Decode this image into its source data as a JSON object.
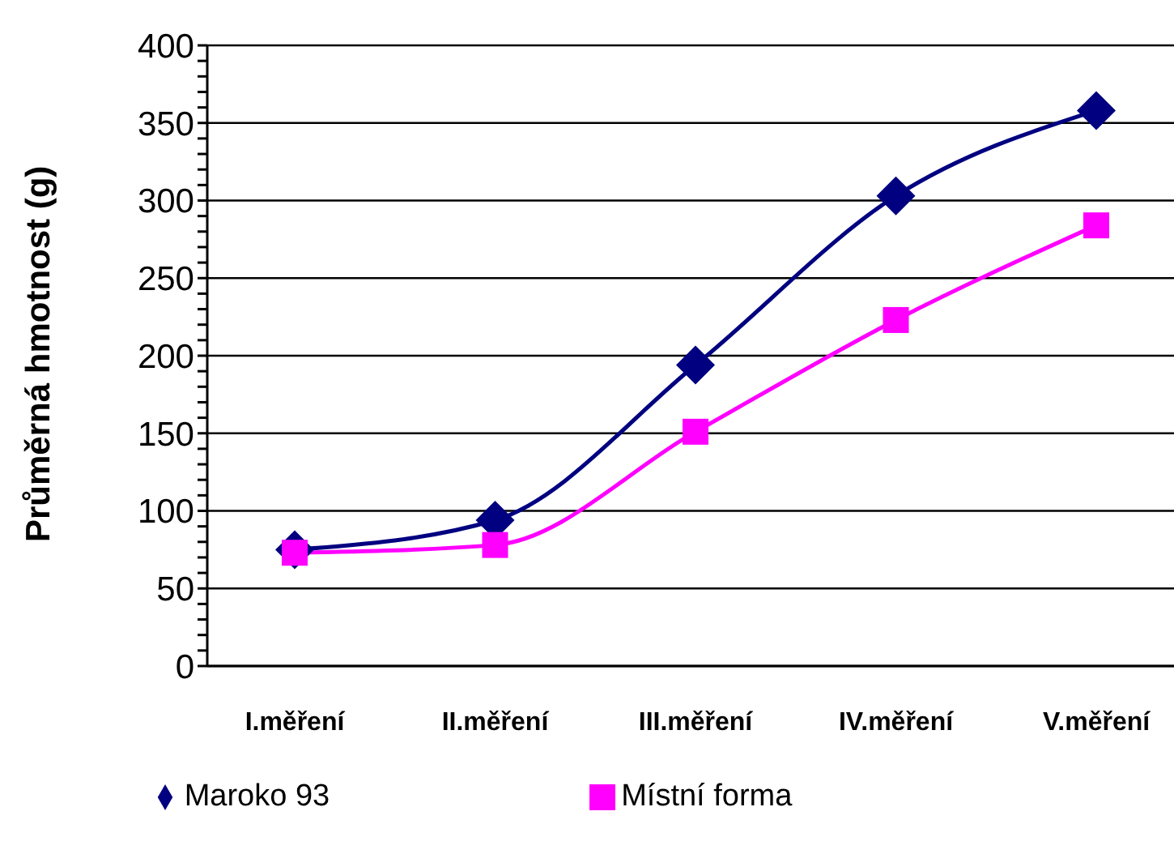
{
  "chart_data": {
    "type": "line",
    "ylabel": "Průměrná hmotnost (g)",
    "categories": [
      "I.měření",
      "II.měření",
      "III.měření",
      "IV.měření",
      "V.měření"
    ],
    "series": [
      {
        "name": "Maroko 93",
        "color": "#000080",
        "marker": "diamond",
        "values": [
          75,
          94,
          194,
          303,
          358
        ]
      },
      {
        "name": "Místní forma",
        "color": "#ff00ff",
        "marker": "square",
        "values": [
          73,
          78,
          151,
          223,
          284
        ]
      }
    ],
    "ylim": [
      0,
      400
    ],
    "yticks": [
      0,
      {
        "value": 10,
        "label": null
      },
      {
        "value": 20,
        "label": null
      },
      {
        "value": 30,
        "label": null
      },
      {
        "value": 40,
        "label": null
      },
      50,
      {
        "value": 60,
        "label": null
      },
      {
        "value": 70,
        "label": null
      },
      {
        "value": 80,
        "label": null
      },
      {
        "value": 90,
        "label": null
      },
      100,
      {
        "value": 110,
        "label": null
      },
      {
        "value": 120,
        "label": null
      },
      {
        "value": 130,
        "label": null
      },
      {
        "value": 140,
        "label": null
      },
      150,
      {
        "value": 160,
        "label": null
      },
      {
        "value": 170,
        "label": null
      },
      {
        "value": 180,
        "label": null
      },
      {
        "value": 190,
        "label": null
      },
      200,
      {
        "value": 210,
        "label": null
      },
      {
        "value": 220,
        "label": null
      },
      {
        "value": 230,
        "label": null
      },
      {
        "value": 240,
        "label": null
      },
      250,
      {
        "value": 260,
        "label": null
      },
      {
        "value": 270,
        "label": null
      },
      {
        "value": 280,
        "label": null
      },
      {
        "value": 290,
        "label": null
      },
      300,
      {
        "value": 310,
        "label": null
      },
      {
        "value": 320,
        "label": null
      },
      {
        "value": 330,
        "label": null
      },
      {
        "value": 340,
        "label": null
      },
      350,
      {
        "value": 360,
        "label": null
      },
      {
        "value": 370,
        "label": null
      },
      {
        "value": 380,
        "label": null
      },
      {
        "value": 390,
        "label": null
      },
      400
    ],
    "grid": "y",
    "legend": "bottom",
    "line_style": "solid"
  }
}
